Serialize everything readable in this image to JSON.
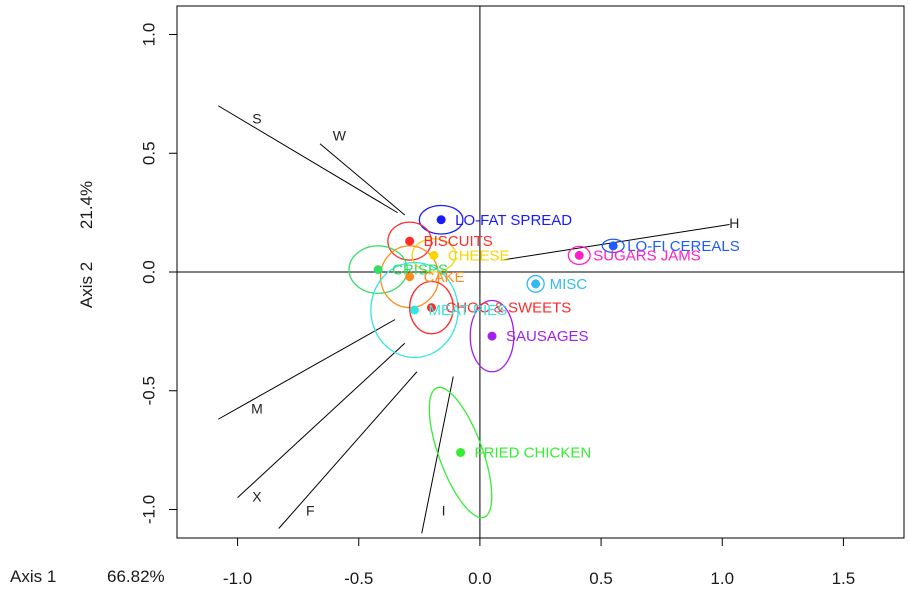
{
  "chart_data": {
    "type": "scatter",
    "title": "",
    "xlabel": "Axis 1",
    "xlabel_percent": "66.82%",
    "ylabel": "Axis 2",
    "ylabel_percent": "21.4%",
    "xlim": [
      -1.25,
      1.75
    ],
    "ylim": [
      -1.12,
      1.12
    ],
    "x_ticks": [
      -1.0,
      -0.5,
      0.0,
      0.5,
      1.0,
      1.5
    ],
    "x_tick_labels": [
      "-1.0",
      "-0.5",
      "0.0",
      "0.5",
      "1.0",
      "1.5"
    ],
    "y_ticks": [
      -1.0,
      -0.5,
      0.0,
      0.5,
      1.0
    ],
    "y_tick_labels": [
      "-1.0",
      "-0.5",
      "0.0",
      "0.5",
      "1.0"
    ],
    "grid": false,
    "reference_lines": {
      "x": 0,
      "y": 0
    },
    "points": [
      {
        "label": "LO-FAT SPREAD",
        "x": -0.16,
        "y": 0.22,
        "color": "#1a1aff",
        "ellipse": {
          "rx": 0.09,
          "ry": 0.06,
          "angle": 0
        }
      },
      {
        "label": "BISCUITS",
        "x": -0.29,
        "y": 0.13,
        "color": "#ff2a2a",
        "ellipse": {
          "rx": 0.09,
          "ry": 0.08,
          "angle": 0
        }
      },
      {
        "label": "CHEESE",
        "x": -0.19,
        "y": 0.07,
        "color": "#f5d700",
        "ellipse": {
          "rx": 0.09,
          "ry": 0.07,
          "angle": 0
        }
      },
      {
        "label": "LO-FI CEREALS",
        "x": 0.55,
        "y": 0.11,
        "color": "#1f5cff",
        "ellipse": {
          "rx": 0.045,
          "ry": 0.028,
          "angle": 0
        }
      },
      {
        "label": "SUGARS JAMS",
        "x": 0.41,
        "y": 0.07,
        "color": "#ff1fc8",
        "ellipse": {
          "rx": 0.045,
          "ry": 0.038,
          "angle": 0
        }
      },
      {
        "label": "CRISPS",
        "x": -0.42,
        "y": 0.01,
        "color": "#33dd66",
        "ellipse": {
          "rx": 0.12,
          "ry": 0.1,
          "angle": 0
        }
      },
      {
        "label": "CAKE",
        "x": -0.29,
        "y": -0.02,
        "color": "#ff8c1a",
        "ellipse": {
          "rx": 0.12,
          "ry": 0.13,
          "angle": 0
        }
      },
      {
        "label": "MISC",
        "x": 0.23,
        "y": -0.05,
        "color": "#33bbee",
        "ellipse": {
          "rx": 0.035,
          "ry": 0.035,
          "angle": 0
        }
      },
      {
        "label": "CHOC & SWEETS",
        "x": -0.2,
        "y": -0.15,
        "color": "#ff2a2a",
        "ellipse": {
          "rx": 0.09,
          "ry": 0.11,
          "angle": 0
        }
      },
      {
        "label": "MEAT PIES",
        "x": -0.27,
        "y": -0.16,
        "color": "#33e6dd",
        "ellipse": {
          "rx": 0.18,
          "ry": 0.2,
          "angle": 0
        }
      },
      {
        "label": "SAUSAGES",
        "x": 0.05,
        "y": -0.27,
        "color": "#a020f0",
        "ellipse": {
          "rx": 0.09,
          "ry": 0.15,
          "angle": 0
        }
      },
      {
        "label": "FRIED CHICKEN",
        "x": -0.08,
        "y": -0.76,
        "color": "#33ee33",
        "ellipse": {
          "rx": 0.09,
          "ry": 0.29,
          "angle": 20
        }
      }
    ],
    "vectors": [
      {
        "label": "S",
        "start": [
          -1.08,
          0.7
        ],
        "end": [
          -0.34,
          0.25
        ],
        "label_pos": [
          -0.92,
          0.64
        ]
      },
      {
        "label": "W",
        "start": [
          -0.66,
          0.54
        ],
        "end": [
          -0.31,
          0.24
        ],
        "label_pos": [
          -0.58,
          0.57
        ]
      },
      {
        "label": "H",
        "start": [
          1.03,
          0.2
        ],
        "end": [
          0.09,
          0.05
        ],
        "label_pos": [
          1.05,
          0.2
        ]
      },
      {
        "label": "M",
        "start": [
          -1.08,
          -0.62
        ],
        "end": [
          -0.35,
          -0.2
        ],
        "label_pos": [
          -0.92,
          -0.58
        ]
      },
      {
        "label": "X",
        "start": [
          -1.0,
          -0.95
        ],
        "end": [
          -0.31,
          -0.3
        ],
        "label_pos": [
          -0.92,
          -0.95
        ]
      },
      {
        "label": "F",
        "start": [
          -0.83,
          -1.08
        ],
        "end": [
          -0.26,
          -0.42
        ],
        "label_pos": [
          -0.7,
          -1.01
        ]
      },
      {
        "label": "I",
        "start": [
          -0.24,
          -1.1
        ],
        "end": [
          -0.11,
          -0.44
        ],
        "label_pos": [
          -0.15,
          -1.01
        ]
      }
    ]
  }
}
